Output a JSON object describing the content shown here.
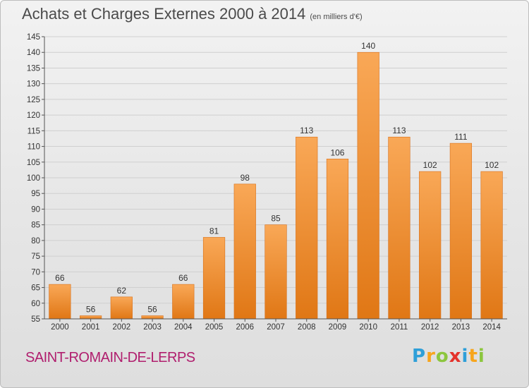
{
  "title": "Achats et Charges Externes 2000 à 2014",
  "subtitle": "(en milliers d'€)",
  "commune": "SAINT-ROMAIN-DE-LERPS",
  "logo": {
    "letters": [
      "P",
      "r",
      "o",
      "x",
      "i",
      "t",
      "i"
    ],
    "colors": [
      "#2e9fd8",
      "#f7a51c",
      "#8cc63e",
      "#e4322b",
      "#2e9fd8",
      "#f7a51c",
      "#8cc63e"
    ]
  },
  "chart_data": {
    "type": "bar",
    "categories": [
      "2000",
      "2001",
      "2002",
      "2003",
      "2004",
      "2005",
      "2006",
      "2007",
      "2008",
      "2009",
      "2010",
      "2011",
      "2012",
      "2013",
      "2014"
    ],
    "values": [
      66,
      56,
      62,
      56,
      66,
      81,
      98,
      85,
      113,
      106,
      140,
      113,
      102,
      111,
      102
    ],
    "data_labels": [
      "66",
      "56",
      "62",
      "56",
      "66",
      "81",
      "98",
      "85",
      "113",
      "106",
      "140",
      "113",
      "102",
      "111",
      "102"
    ],
    "title": "Achats et Charges Externes 2000 à 2014",
    "xlabel": "",
    "ylabel": "",
    "ylim": [
      55,
      145
    ],
    "yticks": [
      55,
      60,
      65,
      70,
      75,
      80,
      85,
      90,
      95,
      100,
      105,
      110,
      115,
      120,
      125,
      130,
      135,
      140,
      145
    ],
    "grid": true,
    "bar_color": "#f08a2c"
  }
}
